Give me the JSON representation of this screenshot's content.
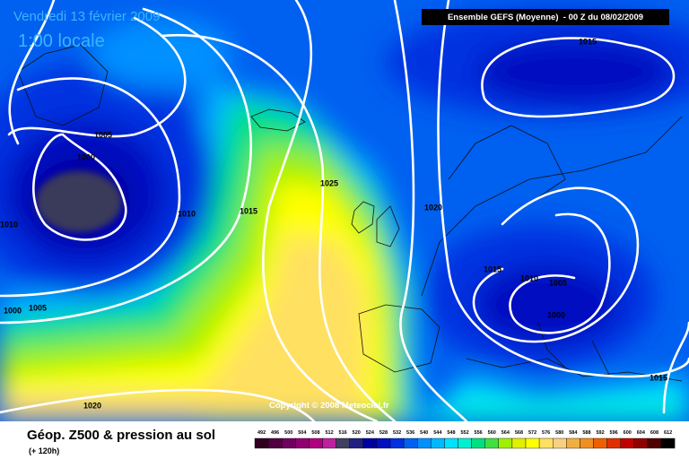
{
  "header": {
    "date": "Vendredi 13 février 2009",
    "time": "1:00 locale",
    "model": "Ensemble GEFS (Moyenne)  - 00 Z du 08/02/2009",
    "copyright": "Copyright © 2008 Meteociel.fr"
  },
  "isobar_labels": [
    "1015",
    "1005",
    "1000",
    "1010",
    "1015",
    "1025",
    "1020",
    "1010",
    "1000",
    "1005",
    "1020",
    "1015",
    "1010",
    "1005",
    "1000",
    "1015"
  ],
  "footer": {
    "title": "Géop. Z500 & pression au sol",
    "lead": "(+ 120h)"
  },
  "legend": {
    "values": [
      492,
      496,
      500,
      504,
      508,
      512,
      516,
      520,
      524,
      528,
      532,
      536,
      540,
      544,
      548,
      552,
      556,
      560,
      564,
      568,
      572,
      576,
      580,
      584,
      588,
      592,
      596,
      600,
      604,
      608,
      612
    ],
    "colors": [
      "#300020",
      "#500040",
      "#700060",
      "#900070",
      "#b00080",
      "#c020a0",
      "#404060",
      "#202080",
      "#0000a0",
      "#0010c0",
      "#0030e0",
      "#0060f0",
      "#0090ff",
      "#00b8ff",
      "#00e0ff",
      "#00f0d0",
      "#00e080",
      "#40e040",
      "#a0f000",
      "#e0f000",
      "#ffff00",
      "#ffe060",
      "#f8d080",
      "#f0b040",
      "#f09020",
      "#f06000",
      "#e03000",
      "#c00000",
      "#900000",
      "#500000",
      "#000000"
    ]
  }
}
